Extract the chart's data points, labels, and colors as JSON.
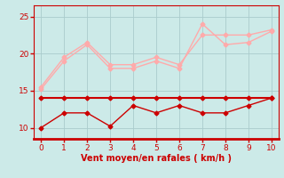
{
  "x": [
    0,
    1,
    2,
    3,
    4,
    5,
    6,
    7,
    8,
    9,
    10
  ],
  "line1": [
    14.0,
    14.0,
    14.0,
    14.0,
    14.0,
    14.0,
    14.0,
    14.0,
    14.0,
    14.0,
    14.0
  ],
  "line2": [
    10.0,
    12.0,
    12.0,
    10.2,
    13.0,
    12.0,
    13.0,
    12.0,
    12.0,
    13.0,
    14.0
  ],
  "line3": [
    15.2,
    19.0,
    21.2,
    18.0,
    18.0,
    19.0,
    18.0,
    24.0,
    21.2,
    21.5,
    23.0
  ],
  "line4": [
    15.5,
    19.5,
    21.5,
    18.5,
    18.5,
    19.5,
    18.5,
    22.5,
    22.5,
    22.5,
    23.2
  ],
  "color_dark": "#cc0000",
  "color_light": "#ffaaaa",
  "xlabel": "Vent moyen/en rafales ( km/h )",
  "ylim": [
    8.5,
    26.5
  ],
  "xlim": [
    -0.3,
    10.3
  ],
  "yticks": [
    10,
    15,
    20,
    25
  ],
  "xticks": [
    0,
    1,
    2,
    3,
    4,
    5,
    6,
    7,
    8,
    9,
    10
  ],
  "bg_color": "#cceae8",
  "grid_color": "#aacccc",
  "xlabel_color": "#cc0000",
  "tick_color": "#cc0000",
  "markersize": 2.5,
  "linewidth": 1.0,
  "linewidth_flat": 1.5
}
